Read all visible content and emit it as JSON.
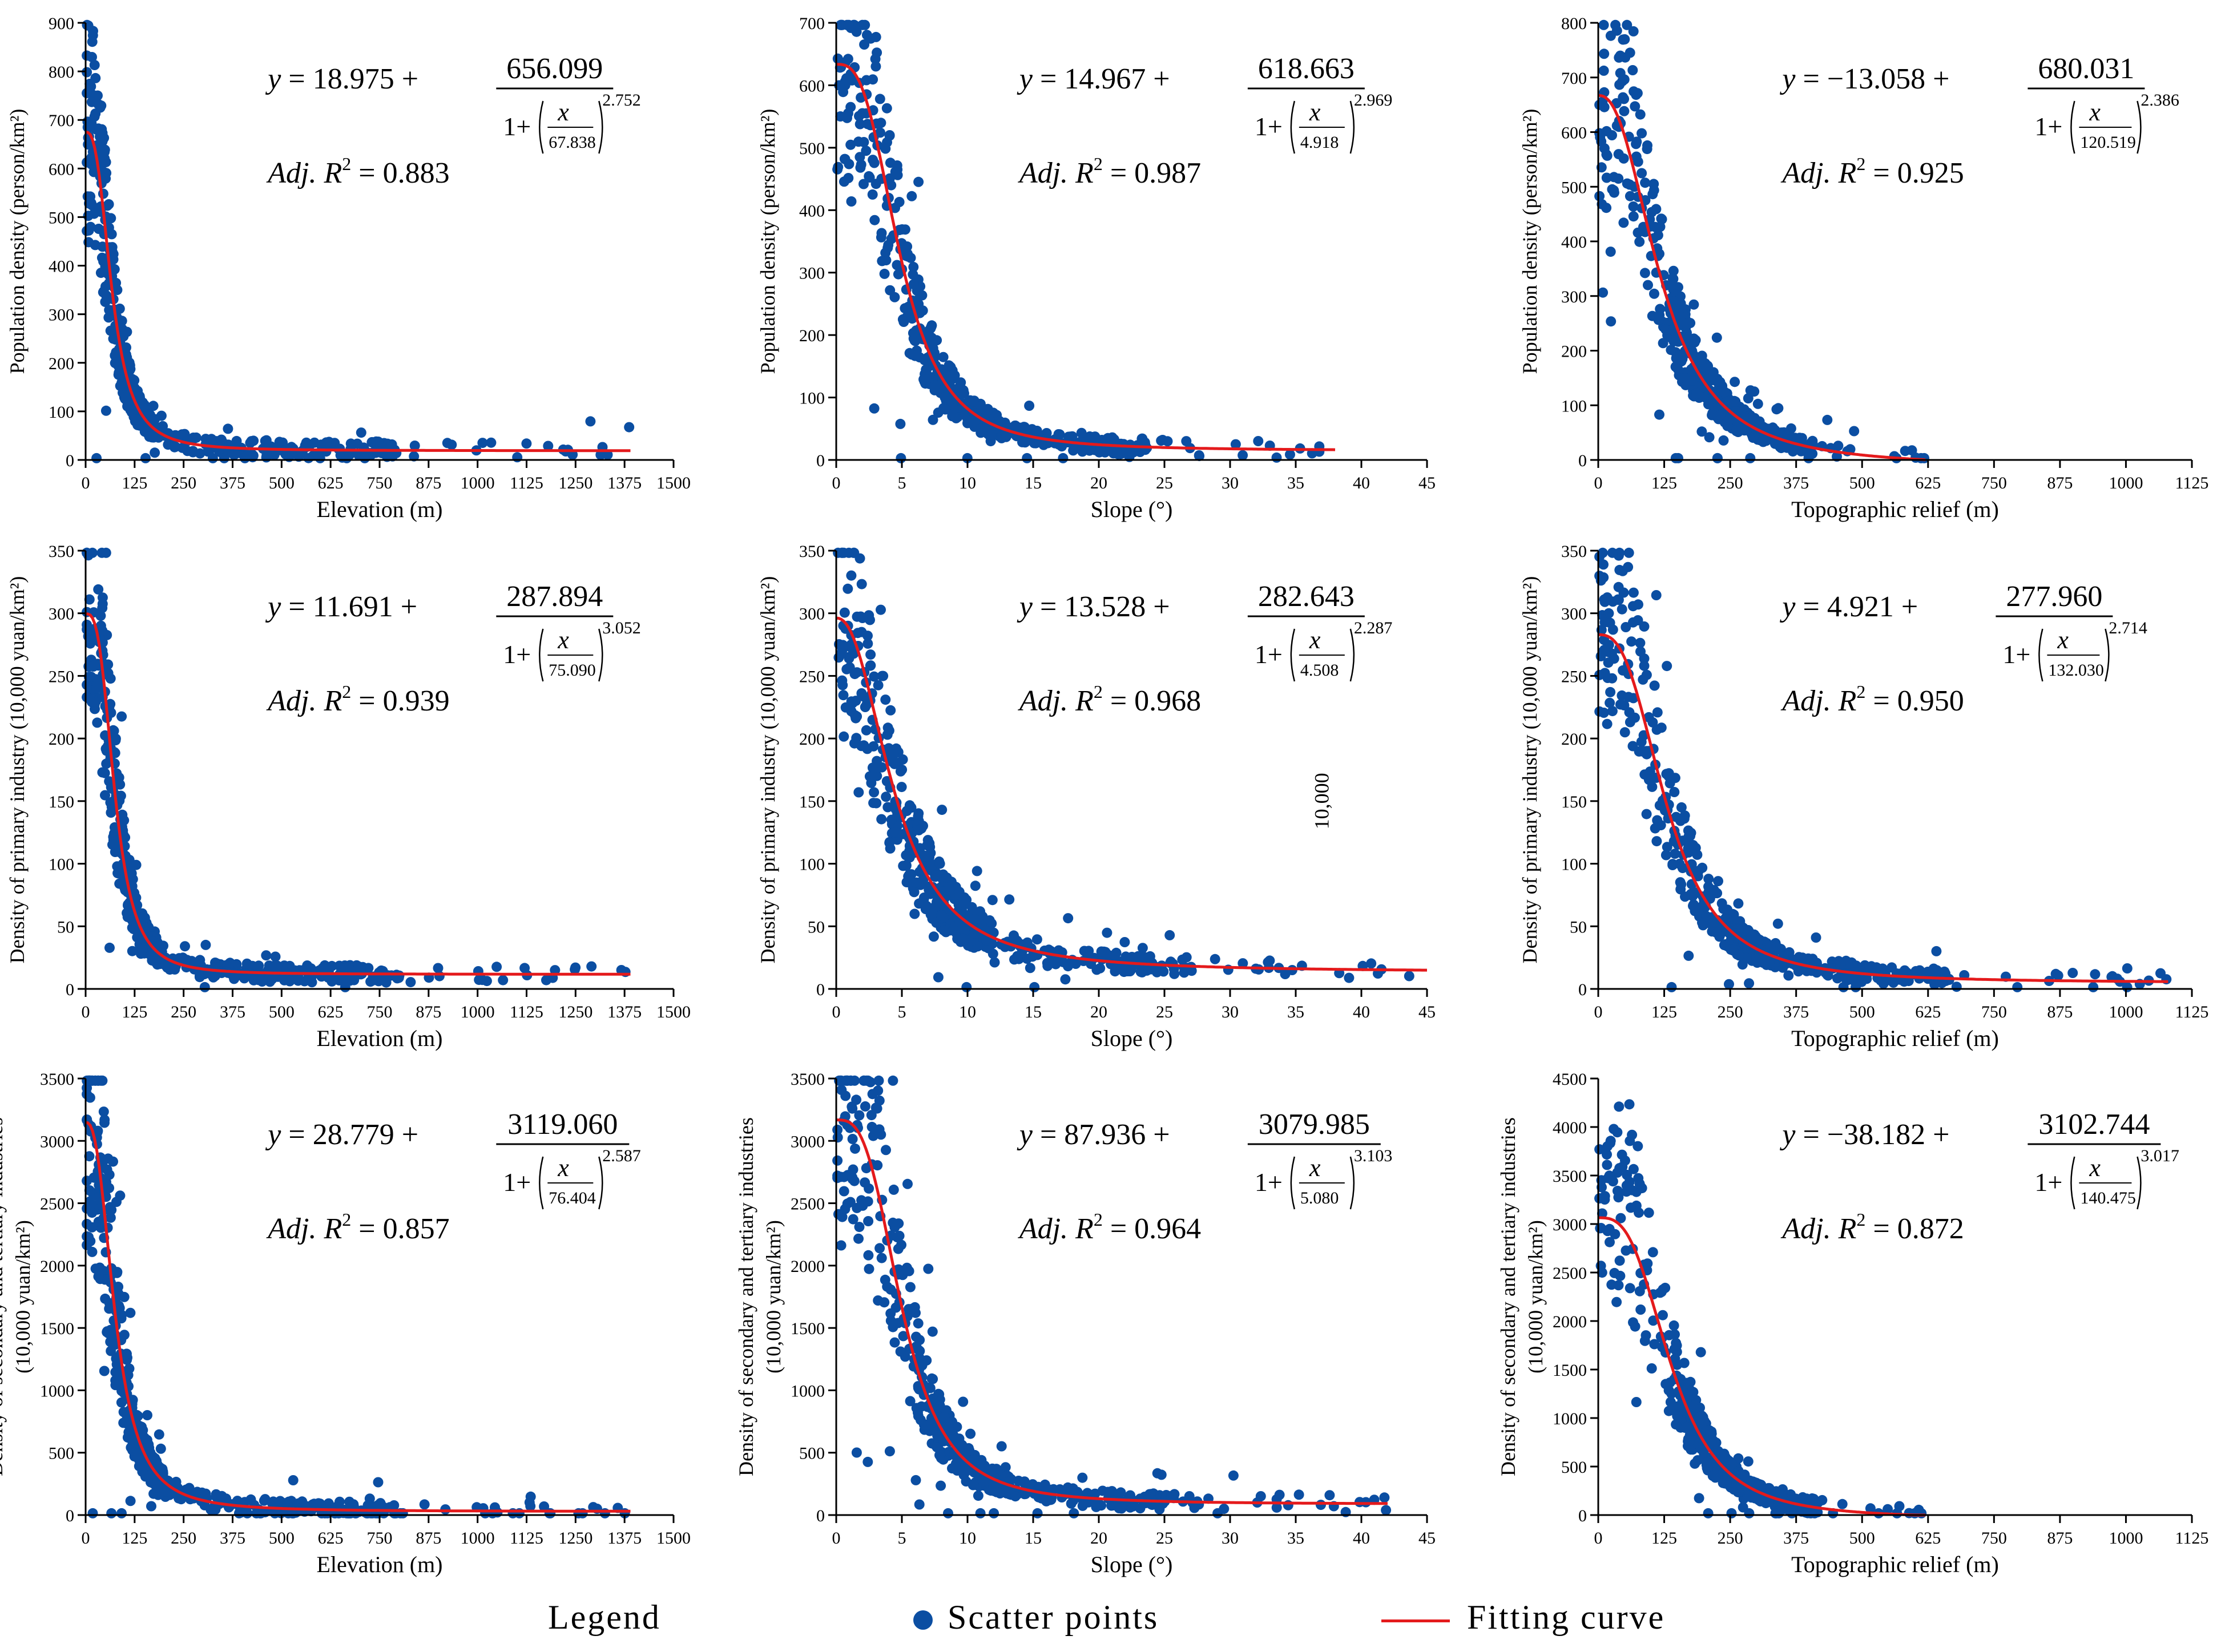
{
  "colors": {
    "point": "#0b4ea2",
    "curve": "#e41a1c",
    "axis": "#000000"
  },
  "legend": {
    "title": "Legend",
    "points_label": "Scatter points",
    "curve_label": "Fitting curve"
  },
  "chart_data": [
    {
      "id": "p1",
      "type": "scatter",
      "xlabel": "Elevation (m)",
      "ylabel": [
        "Population density (person/km²)"
      ],
      "xlim": [
        0,
        1500
      ],
      "ylim": [
        0,
        900
      ],
      "xticks": [
        "0",
        "125",
        "250",
        "375",
        "500",
        "625",
        "750",
        "875",
        "1000",
        "1125",
        "1250",
        "1375",
        "1500"
      ],
      "yticks": [
        "0",
        "100",
        "200",
        "300",
        "400",
        "500",
        "600",
        "700",
        "800",
        "900"
      ],
      "fit": {
        "a": "18.975",
        "b": "656.099",
        "c": "67.838",
        "d": "2.752",
        "r2": "0.883",
        "sign": ""
      },
      "scatter_peak": 840,
      "curve_xmax": 1390,
      "annotation": ""
    },
    {
      "id": "p2",
      "type": "scatter",
      "xlabel": "Slope (°)",
      "ylabel": [
        "Population density (person/km²)"
      ],
      "xlim": [
        0,
        45
      ],
      "ylim": [
        0,
        700
      ],
      "xticks": [
        "0",
        "5",
        "10",
        "15",
        "20",
        "25",
        "30",
        "35",
        "40",
        "45"
      ],
      "yticks": [
        "0",
        "100",
        "200",
        "300",
        "400",
        "500",
        "600",
        "700"
      ],
      "fit": {
        "a": "14.967",
        "b": "618.663",
        "c": "4.918",
        "d": "2.969",
        "r2": "0.987",
        "sign": ""
      },
      "scatter_peak": 640,
      "curve_xmax": 38,
      "annotation": ""
    },
    {
      "id": "p3",
      "type": "scatter",
      "xlabel": "Topographic relief (m)",
      "ylabel": [
        "Population density (person/km²)"
      ],
      "xlim": [
        0,
        1125
      ],
      "ylim": [
        0,
        800
      ],
      "xticks": [
        "0",
        "125",
        "250",
        "375",
        "500",
        "625",
        "750",
        "875",
        "1000",
        "1125"
      ],
      "yticks": [
        "0",
        "100",
        "200",
        "300",
        "400",
        "500",
        "600",
        "700",
        "800"
      ],
      "fit": {
        "a": "13.058",
        "b": "680.031",
        "c": "120.519",
        "d": "2.386",
        "r2": "0.925",
        "sign": "−"
      },
      "scatter_peak": 790,
      "curve_xmax": 620,
      "annotation": ""
    },
    {
      "id": "p4",
      "type": "scatter",
      "xlabel": "Elevation (m)",
      "ylabel": [
        "Density of primary industry (10,000 yuan/km²)"
      ],
      "xlim": [
        0,
        1500
      ],
      "ylim": [
        0,
        350
      ],
      "xticks": [
        "0",
        "125",
        "250",
        "375",
        "500",
        "625",
        "750",
        "875",
        "1000",
        "1125",
        "1250",
        "1375",
        "1500"
      ],
      "yticks": [
        "0",
        "50",
        "100",
        "150",
        "200",
        "250",
        "300",
        "350"
      ],
      "fit": {
        "a": "11.691",
        "b": "287.894",
        "c": "75.090",
        "d": "3.052",
        "r2": "0.939",
        "sign": ""
      },
      "scatter_peak": 320,
      "curve_xmax": 1390,
      "annotation": ""
    },
    {
      "id": "p5",
      "type": "scatter",
      "xlabel": "Slope (°)",
      "ylabel": [
        "Density of primary industry (10,000 yuan/km²)"
      ],
      "xlim": [
        0,
        45
      ],
      "ylim": [
        0,
        350
      ],
      "xticks": [
        "0",
        "5",
        "10",
        "15",
        "20",
        "25",
        "30",
        "35",
        "40",
        "45"
      ],
      "yticks": [
        "0",
        "50",
        "100",
        "150",
        "200",
        "250",
        "300",
        "350"
      ],
      "fit": {
        "a": "13.528",
        "b": "282.643",
        "c": "4.508",
        "d": "2.287",
        "r2": "0.968",
        "sign": ""
      },
      "scatter_peak": 300,
      "curve_xmax": 45,
      "annotation": "10,000"
    },
    {
      "id": "p6",
      "type": "scatter",
      "xlabel": "Topographic relief (m)",
      "ylabel": [
        "Density of primary industry (10,000 yuan/km²)"
      ],
      "xlim": [
        0,
        1125
      ],
      "ylim": [
        0,
        350
      ],
      "xticks": [
        "0",
        "125",
        "250",
        "375",
        "500",
        "625",
        "750",
        "875",
        "1000",
        "1125"
      ],
      "yticks": [
        "0",
        "50",
        "100",
        "150",
        "200",
        "250",
        "300",
        "350"
      ],
      "fit": {
        "a": "4.921",
        "b": "277.960",
        "c": "132.030",
        "d": "2.714",
        "r2": "0.950",
        "sign": ""
      },
      "scatter_peak": 340,
      "curve_xmax": 1080,
      "annotation": ""
    },
    {
      "id": "p7",
      "type": "scatter",
      "xlabel": "Elevation (m)",
      "ylabel": [
        "Density of secondary and tertiary industries",
        "(10,000 yuan/km²)"
      ],
      "xlim": [
        0,
        1500
      ],
      "ylim": [
        0,
        3500
      ],
      "xticks": [
        "0",
        "125",
        "250",
        "375",
        "500",
        "625",
        "750",
        "875",
        "1000",
        "1125",
        "1250",
        "1375",
        "1500"
      ],
      "yticks": [
        "0",
        "500",
        "1000",
        "1500",
        "2000",
        "2500",
        "3000",
        "3500"
      ],
      "fit": {
        "a": "28.779",
        "b": "3119.060",
        "c": "76.404",
        "d": "2.587",
        "r2": "0.857",
        "sign": ""
      },
      "scatter_peak": 3450,
      "curve_xmax": 1390,
      "annotation": ""
    },
    {
      "id": "p8",
      "type": "scatter",
      "xlabel": "Slope (°)",
      "ylabel": [
        "Density of secondary and tertiary industries",
        "(10,000 yuan/km²)"
      ],
      "xlim": [
        0,
        45
      ],
      "ylim": [
        0,
        3500
      ],
      "xticks": [
        "0",
        "5",
        "10",
        "15",
        "20",
        "25",
        "30",
        "35",
        "40",
        "45"
      ],
      "yticks": [
        "0",
        "500",
        "1000",
        "1500",
        "2000",
        "2500",
        "3000",
        "3500"
      ],
      "fit": {
        "a": "87.936",
        "b": "3079.985",
        "c": "5.080",
        "d": "3.103",
        "r2": "0.964",
        "sign": ""
      },
      "scatter_peak": 3300,
      "curve_xmax": 42,
      "annotation": ""
    },
    {
      "id": "p9",
      "type": "scatter",
      "xlabel": "Topographic relief (m)",
      "ylabel": [
        "Density of secondary and tertiary industries",
        "(10,000 yuan/km²)"
      ],
      "xlim": [
        0,
        1125
      ],
      "ylim": [
        0,
        4500
      ],
      "xticks": [
        "0",
        "125",
        "250",
        "375",
        "500",
        "625",
        "750",
        "875",
        "1000",
        "1125"
      ],
      "yticks": [
        "0",
        "500",
        "1000",
        "1500",
        "2000",
        "2500",
        "3000",
        "3500",
        "4000",
        "4500"
      ],
      "fit": {
        "a": "38.182",
        "b": "3102.744",
        "c": "140.475",
        "d": "3.017",
        "r2": "0.872",
        "sign": "−"
      },
      "scatter_peak": 4300,
      "curve_xmax": 620,
      "annotation": ""
    }
  ]
}
